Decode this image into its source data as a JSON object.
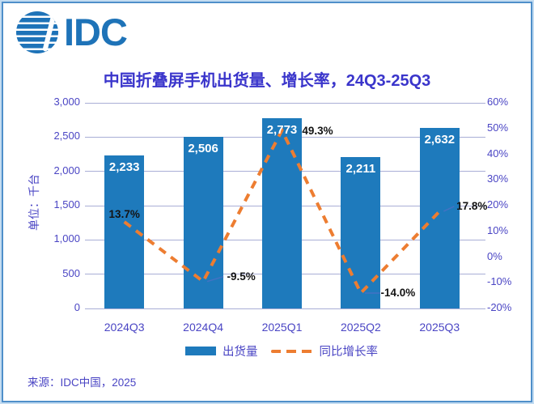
{
  "logo": {
    "text": "IDC",
    "icon": "idc-globe-icon"
  },
  "source": "来源：IDC中国，2025",
  "colors": {
    "bar": "#1e7abc",
    "line": "#ed7d31",
    "axis_text": "#4a45c4",
    "title_text": "#3a35cb",
    "growth_label_text": "#141414",
    "gridline": "#a9aed6",
    "leader_line": "#4472c4",
    "logo_blue": "#1e73b8",
    "frame_border": "#4f8fca"
  },
  "chart_data": {
    "type": "combo",
    "title": "中国折叠屏手机出货量、增长率，24Q3-25Q3",
    "categories": [
      "2024Q3",
      "2024Q4",
      "2025Q1",
      "2025Q2",
      "2025Q3"
    ],
    "series": [
      {
        "name": "出货量",
        "type": "bar",
        "axis": "left",
        "color": "#1e7abc",
        "values": [
          2233,
          2506,
          2773,
          2211,
          2632
        ],
        "labels": [
          "2,233",
          "2,506",
          "2,773",
          "2,211",
          "2,632"
        ]
      },
      {
        "name": "同比增长率",
        "type": "line",
        "dashed": true,
        "axis": "right",
        "color": "#ed7d31",
        "values": [
          13.7,
          -9.5,
          49.3,
          -14.0,
          17.8
        ],
        "labels": [
          "13.7%",
          "-9.5%",
          "49.3%",
          "-14.0%",
          "17.8%"
        ],
        "label_leader_lines": [
          false,
          true,
          false,
          true,
          true
        ]
      }
    ],
    "left_axis": {
      "label": "单位：千台",
      "min": 0,
      "max": 3000,
      "step": 500,
      "tick_labels_top_down": [
        "3,000",
        "2,500",
        "2,000",
        "1,500",
        "1,000",
        "500",
        "0"
      ]
    },
    "right_axis": {
      "min": -20,
      "max": 60,
      "step": 10,
      "tick_labels_top_down": [
        "60%",
        "50%",
        "40%",
        "30%",
        "20%",
        "10%",
        "0%",
        "-10%",
        "-20%"
      ]
    },
    "grid": true,
    "legend_position": "bottom"
  }
}
